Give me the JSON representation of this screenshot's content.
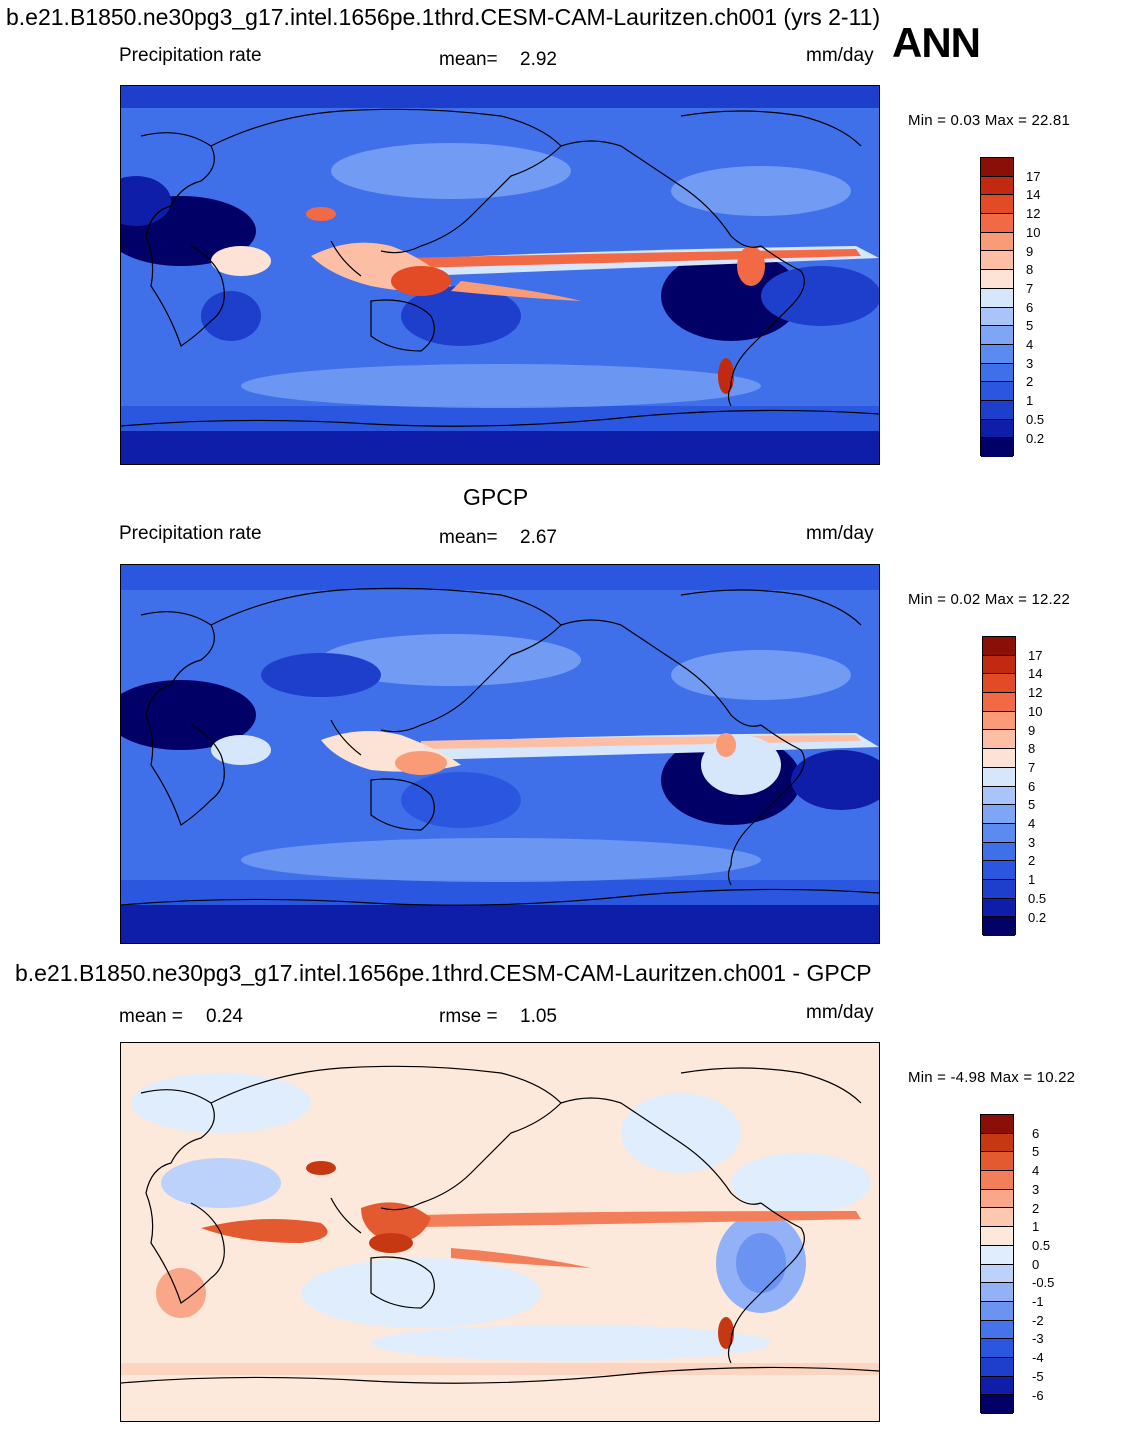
{
  "title": "b.e21.B1850.ne30pg3_g17.intel.1656pe.1thrd.CESM-CAM-Lauritzen.ch001 (yrs 2-11)",
  "season": "ANN",
  "colors": {
    "precip_scale": [
      "#000066",
      "#0f1ea8",
      "#1d3fcc",
      "#2b57e0",
      "#3f70ea",
      "#5b8bf0",
      "#7fa6f5",
      "#a8c4f8",
      "#d6e6fb",
      "#fde3d6",
      "#fcbfa5",
      "#f99b77",
      "#f26a45",
      "#e24b25",
      "#c12a10",
      "#8a0f06"
    ],
    "diff_scale": [
      "#000066",
      "#0f1ea8",
      "#1d3fcc",
      "#2b57e0",
      "#4673ea",
      "#6a93f2",
      "#93b1f6",
      "#bcd2fa",
      "#e0edfd",
      "#fde8dc",
      "#fcc8b0",
      "#f9a788",
      "#f27f5a",
      "#e45a30",
      "#c63812",
      "#8a0f06"
    ]
  },
  "chart_data": [
    {
      "type": "heatmap",
      "name": "model",
      "variable": "Precipitation rate",
      "units": "mm/day",
      "mean_label": "mean=",
      "mean": "2.92",
      "minmax_label": "Min =    0.03 Max =  22.81",
      "min": 0.03,
      "max": 22.81,
      "colorbar_levels": [
        "17",
        "14",
        "12",
        "10",
        "9",
        "8",
        "7",
        "6",
        "5",
        "4",
        "3",
        "2",
        "1",
        "0.5",
        "0.2"
      ]
    },
    {
      "type": "heatmap",
      "name": "GPCP",
      "panel_title": "GPCP",
      "variable": "Precipitation rate",
      "units": "mm/day",
      "mean_label": "mean=",
      "mean": "2.67",
      "minmax_label": "Min =    0.02 Max =  12.22",
      "min": 0.02,
      "max": 12.22,
      "colorbar_levels": [
        "17",
        "14",
        "12",
        "10",
        "9",
        "8",
        "7",
        "6",
        "5",
        "4",
        "3",
        "2",
        "1",
        "0.5",
        "0.2"
      ]
    },
    {
      "type": "heatmap",
      "name": "difference",
      "panel_title": "b.e21.B1850.ne30pg3_g17.intel.1656pe.1thrd.CESM-CAM-Lauritzen.ch001 - GPCP",
      "units": "mm/day",
      "mean_label": "mean =",
      "mean": "0.24",
      "rmse_label": "rmse =",
      "rmse": "1.05",
      "minmax_label": "Min =  -4.98 Max =  10.22",
      "min": -4.98,
      "max": 10.22,
      "colorbar_levels": [
        "6",
        "5",
        "4",
        "3",
        "2",
        "1",
        "0.5",
        "0",
        "-0.5",
        "-1",
        "-2",
        "-3",
        "-4",
        "-5",
        "-6"
      ]
    }
  ]
}
